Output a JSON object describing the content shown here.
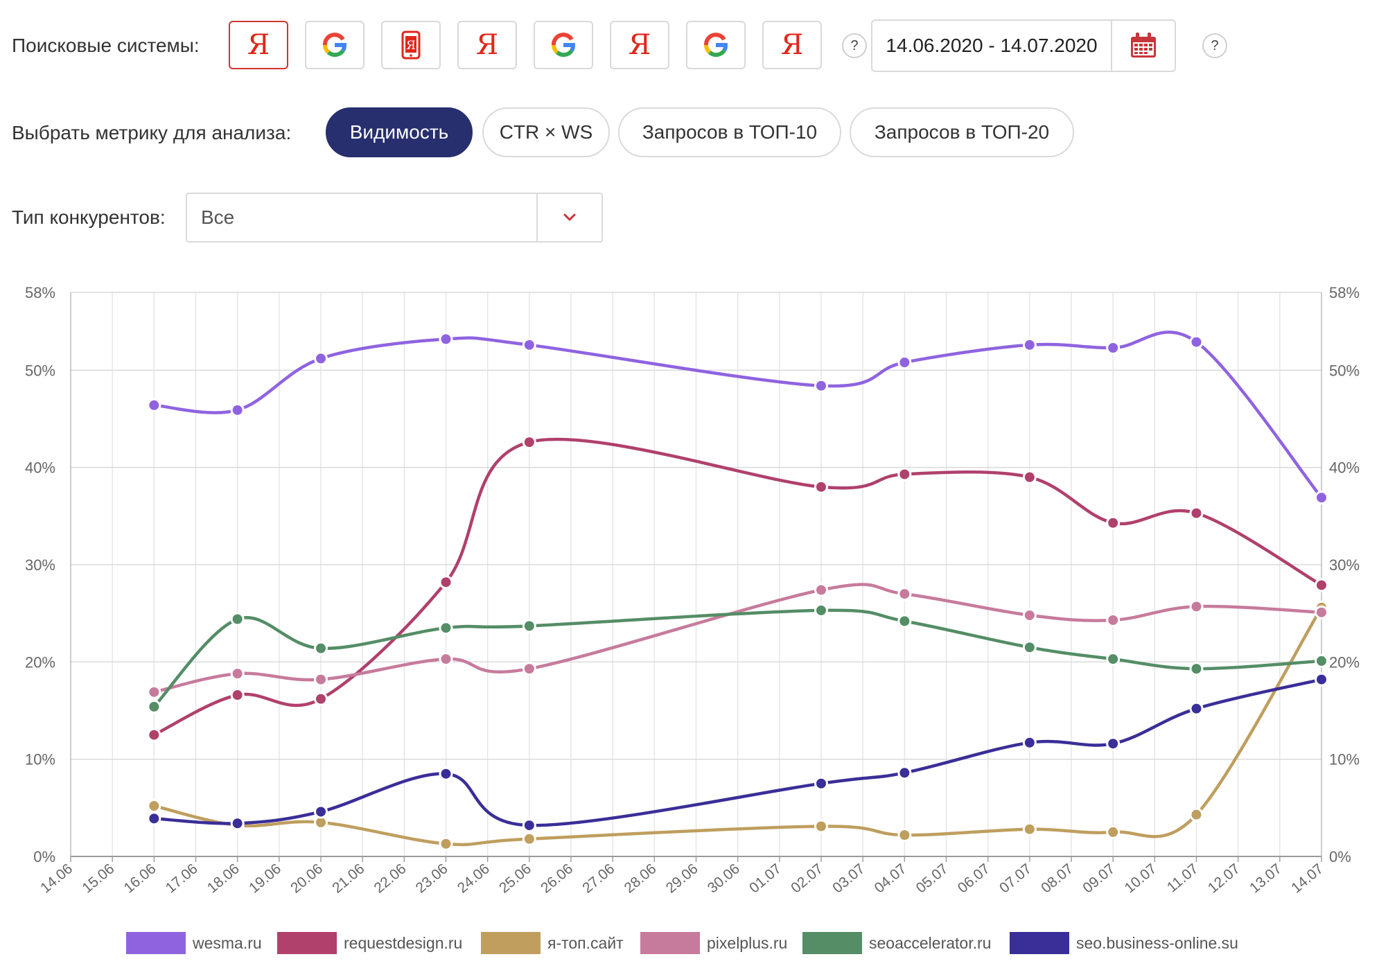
{
  "filters": {
    "engines_label": "Поисковые системы:",
    "engines": [
      {
        "type": "yandex",
        "glyph": "Я",
        "active": true
      },
      {
        "type": "google",
        "glyph": "G",
        "active": false
      },
      {
        "type": "yandex-mobile",
        "glyph": "Я",
        "active": false
      },
      {
        "type": "yandex",
        "glyph": "Я",
        "active": false
      },
      {
        "type": "google",
        "glyph": "G",
        "active": false
      },
      {
        "type": "yandex",
        "glyph": "Я",
        "active": false
      },
      {
        "type": "google",
        "glyph": "G",
        "active": false
      },
      {
        "type": "yandex",
        "glyph": "Я",
        "active": false
      }
    ],
    "help_glyph": "?",
    "date_range": "14.06.2020 - 14.07.2020",
    "metric_label": "Выбрать метрику для анализа:",
    "metrics": [
      {
        "label": "Видимость",
        "active": true
      },
      {
        "label": "CTR × WS",
        "active": false
      },
      {
        "label": "Запросов в ТОП-10",
        "active": false
      },
      {
        "label": "Запросов в ТОП-20",
        "active": false
      }
    ],
    "competitor_type_label": "Тип конкурентов:",
    "competitor_type_value": "Все"
  },
  "colors": {
    "accent_navy": "#272f6e",
    "yandex_red": "#e0261b",
    "calendar_red": "#c9343a"
  },
  "chart_data": {
    "type": "line",
    "x": [
      "14.06",
      "15.06",
      "16.06",
      "17.06",
      "18.06",
      "19.06",
      "20.06",
      "21.06",
      "22.06",
      "23.06",
      "24.06",
      "25.06",
      "26.06",
      "27.06",
      "28.06",
      "29.06",
      "30.06",
      "01.07",
      "02.07",
      "03.07",
      "04.07",
      "05.07",
      "06.07",
      "07.07",
      "08.07",
      "09.07",
      "10.07",
      "11.07",
      "12.07",
      "13.07",
      "14.07"
    ],
    "y_ticks": [
      "0%",
      "10%",
      "20%",
      "30%",
      "40%",
      "50%",
      "58%"
    ],
    "ylim": [
      0,
      58
    ],
    "grid": true,
    "legend_position": "bottom",
    "series": [
      {
        "name": "wesma.ru",
        "color": "#8f63e0",
        "points": [
          [
            2,
            46.4
          ],
          [
            4,
            45.9
          ],
          [
            6,
            51.2
          ],
          [
            9,
            53.2
          ],
          [
            11,
            52.6
          ],
          [
            18,
            48.4
          ],
          [
            20,
            50.8
          ],
          [
            23,
            52.6
          ],
          [
            25,
            52.3
          ],
          [
            27,
            52.9
          ],
          [
            30,
            36.9
          ]
        ]
      },
      {
        "name": "requestdesign.ru",
        "color": "#b0406c",
        "points": [
          [
            2,
            12.5
          ],
          [
            4,
            16.6
          ],
          [
            6,
            16.2
          ],
          [
            9,
            28.2
          ],
          [
            11,
            42.6
          ],
          [
            18,
            38.0
          ],
          [
            20,
            39.3
          ],
          [
            23,
            39.0
          ],
          [
            25,
            34.3
          ],
          [
            27,
            35.3
          ],
          [
            30,
            27.9
          ]
        ]
      },
      {
        "name": "я-топ.сайт",
        "color": "#bf9e5e",
        "points": [
          [
            2,
            5.2
          ],
          [
            4,
            3.2
          ],
          [
            6,
            3.5
          ],
          [
            9,
            1.3
          ],
          [
            11,
            1.8
          ],
          [
            18,
            3.1
          ],
          [
            20,
            2.2
          ],
          [
            23,
            2.8
          ],
          [
            25,
            2.5
          ],
          [
            27,
            4.3
          ],
          [
            30,
            25.6
          ]
        ]
      },
      {
        "name": "pixelplus.ru",
        "color": "#c77b9c",
        "points": [
          [
            2,
            16.9
          ],
          [
            4,
            18.8
          ],
          [
            6,
            18.2
          ],
          [
            9,
            20.3
          ],
          [
            11,
            19.3
          ],
          [
            18,
            27.4
          ],
          [
            20,
            27.0
          ],
          [
            23,
            24.8
          ],
          [
            25,
            24.3
          ],
          [
            27,
            25.7
          ],
          [
            30,
            25.1
          ]
        ]
      },
      {
        "name": "seoaccelerator.ru",
        "color": "#548d66",
        "points": [
          [
            2,
            15.4
          ],
          [
            4,
            24.4
          ],
          [
            6,
            21.4
          ],
          [
            9,
            23.5
          ],
          [
            11,
            23.7
          ],
          [
            18,
            25.3
          ],
          [
            20,
            24.2
          ],
          [
            23,
            21.5
          ],
          [
            25,
            20.3
          ],
          [
            27,
            19.3
          ],
          [
            30,
            20.1
          ]
        ]
      },
      {
        "name": "seo.business-online.su",
        "color": "#3a2e98",
        "points": [
          [
            2,
            3.9
          ],
          [
            4,
            3.4
          ],
          [
            6,
            4.6
          ],
          [
            9,
            8.5
          ],
          [
            11,
            3.2
          ],
          [
            18,
            7.5
          ],
          [
            20,
            8.6
          ],
          [
            23,
            11.7
          ],
          [
            25,
            11.6
          ],
          [
            27,
            15.2
          ],
          [
            30,
            18.2
          ]
        ]
      }
    ]
  }
}
